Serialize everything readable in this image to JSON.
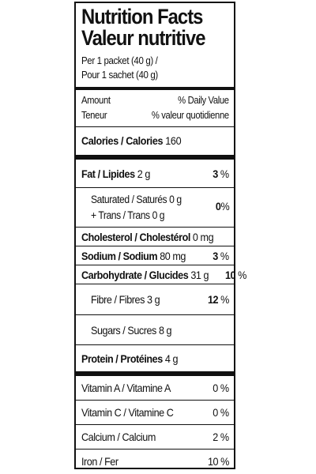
{
  "title": {
    "en": "Nutrition Facts",
    "fr": "Valeur nutritive"
  },
  "serving": {
    "en": "Per 1 packet (40 g) /",
    "fr": "Pour 1 sachet (40 g)"
  },
  "header": {
    "amount_en": "Amount",
    "amount_fr": "Teneur",
    "dv_en": "% Daily Value",
    "dv_fr": "% valeur quotidienne"
  },
  "calories": {
    "label": "Calories / Calories",
    "amount": "160"
  },
  "fat": {
    "label": "Fat / Lipides",
    "amount": "2 g",
    "dv": "3",
    "pct": "%"
  },
  "saturated": {
    "line1_label": "Saturated / Saturés",
    "line1_amount": "0 g",
    "line2_label": "+ Trans / Trans",
    "line2_amount": "0 g",
    "dv": "0",
    "pct": "%"
  },
  "cholesterol": {
    "label": "Cholesterol / Cholestérol",
    "amount": "0 mg"
  },
  "sodium": {
    "label": "Sodium / Sodium",
    "amount": "80 mg",
    "dv": "3",
    "pct": "%"
  },
  "carbohydrate": {
    "label": "Carbohydrate / Glucides",
    "amount": "31 g",
    "dv": "10",
    "pct": "%"
  },
  "fibre": {
    "label": "Fibre / Fibres",
    "amount": "3 g",
    "dv": "12",
    "pct": "%"
  },
  "sugars": {
    "label": "Sugars / Sucres",
    "amount": "8 g"
  },
  "protein": {
    "label": "Protein / Protéines",
    "amount": "4 g"
  },
  "vitamins": [
    {
      "label": "Vitamin A / Vitamine A",
      "dv": "0 %"
    },
    {
      "label": "Vitamin C / Vitamine C",
      "dv": "0 %"
    },
    {
      "label": "Calcium / Calcium",
      "dv": "2 %"
    },
    {
      "label": "Iron / Fer",
      "dv": "10 %"
    }
  ]
}
